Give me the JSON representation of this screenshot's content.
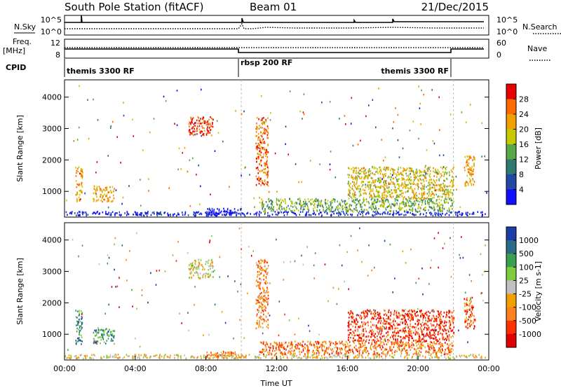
{
  "header": {
    "title": "South Pole Station (fitACF)",
    "beam": "Beam 01",
    "date": "21/Dec/2015"
  },
  "top_panels": {
    "nsky_label": "N.Sky",
    "nsky_ticks": [
      "10^5",
      "10^0"
    ],
    "nsearch_label": "N.Search",
    "nsearch_ticks": [
      "10^5",
      "10^0"
    ],
    "freq_label": "Freq.",
    "freq_unit": "[MHz]",
    "freq_ticks": [
      "12",
      "8"
    ],
    "nave_label": "Nave",
    "nave_ticks": [
      "60",
      "0"
    ],
    "cpid_label": "CPID",
    "cpid_segments": [
      {
        "label": "themis 3300 RF",
        "start_hour": 0,
        "end_hour": 10
      },
      {
        "label": "rbsp 200 RF",
        "start_hour": 10,
        "end_hour": 22
      },
      {
        "label": "themis 3300 RF",
        "start_hour": 22,
        "end_hour": 24
      }
    ]
  },
  "chart_data": [
    {
      "type": "heatmap",
      "panel": "power",
      "xlabel": "",
      "ylabel": "Slant Range [km]",
      "xlim": [
        0,
        24
      ],
      "ylim": [
        180,
        4550
      ],
      "yticks": [
        1000,
        2000,
        3000,
        4000
      ],
      "colorbar": {
        "label": "Power [dB]",
        "ticks": [
          "28",
          "24",
          "20",
          "16",
          "12",
          "8",
          "4"
        ],
        "colors": [
          "#e80000",
          "#ff6a00",
          "#f0a000",
          "#c8c800",
          "#58a848",
          "#2e7a6e",
          "#2448a8",
          "#1010ff"
        ]
      },
      "regions": [
        {
          "x": [
            0.0,
            23.8
          ],
          "y": [
            250,
            380
          ],
          "level": 0.92
        },
        {
          "x": [
            8.0,
            10.0
          ],
          "y": [
            250,
            480
          ],
          "level": 0.95
        },
        {
          "x": [
            11.0,
            22.0
          ],
          "y": [
            380,
            800
          ],
          "level": 0.55
        },
        {
          "x": [
            16.0,
            22.0
          ],
          "y": [
            800,
            1800
          ],
          "level": 0.4
        },
        {
          "x": [
            0.6,
            1.0
          ],
          "y": [
            700,
            1800
          ],
          "level": 0.3
        },
        {
          "x": [
            1.6,
            2.8
          ],
          "y": [
            700,
            1200
          ],
          "level": 0.3
        },
        {
          "x": [
            7.0,
            8.4
          ],
          "y": [
            2800,
            3400
          ],
          "level": 0.12
        },
        {
          "x": [
            10.8,
            11.5
          ],
          "y": [
            1200,
            3400
          ],
          "level": 0.2
        },
        {
          "x": [
            22.6,
            23.2
          ],
          "y": [
            1200,
            2200
          ],
          "level": 0.3
        }
      ]
    },
    {
      "type": "heatmap",
      "panel": "velocity",
      "xlabel": "Time UT",
      "ylabel": "Slant Range [km]",
      "xlim": [
        0,
        24
      ],
      "ylim": [
        180,
        4550
      ],
      "xticks": [
        "00:00",
        "04:00",
        "08:00",
        "12:00",
        "16:00",
        "20:00",
        "00:00"
      ],
      "yticks": [
        1000,
        2000,
        3000,
        4000
      ],
      "colorbar": {
        "label": "Velocity [m s-1]",
        "ticks": [
          "1000",
          "500",
          "100",
          "25",
          "-25",
          "-100",
          "-500",
          "-1000"
        ],
        "colors": [
          "#1c3ca8",
          "#2a6c88",
          "#3aa050",
          "#80cc40",
          "#c0c0c0",
          "#f0a000",
          "#ff8020",
          "#ff3000",
          "#e00000"
        ]
      },
      "regions": [
        {
          "x": [
            0.0,
            23.8
          ],
          "y": [
            250,
            380
          ],
          "level": 0.55
        },
        {
          "x": [
            8.0,
            10.0
          ],
          "y": [
            250,
            480
          ],
          "level": 0.7
        },
        {
          "x": [
            11.0,
            22.0
          ],
          "y": [
            380,
            800
          ],
          "level": 0.75
        },
        {
          "x": [
            16.0,
            22.0
          ],
          "y": [
            800,
            1800
          ],
          "level": 0.85
        },
        {
          "x": [
            0.6,
            1.0
          ],
          "y": [
            700,
            1800
          ],
          "level": 0.25
        },
        {
          "x": [
            1.6,
            2.8
          ],
          "y": [
            700,
            1200
          ],
          "level": 0.25
        },
        {
          "x": [
            7.0,
            8.4
          ],
          "y": [
            2800,
            3400
          ],
          "level": 0.5
        },
        {
          "x": [
            10.8,
            11.5
          ],
          "y": [
            1200,
            3400
          ],
          "level": 0.7
        },
        {
          "x": [
            22.6,
            23.2
          ],
          "y": [
            1200,
            2200
          ],
          "level": 0.8
        }
      ]
    }
  ]
}
